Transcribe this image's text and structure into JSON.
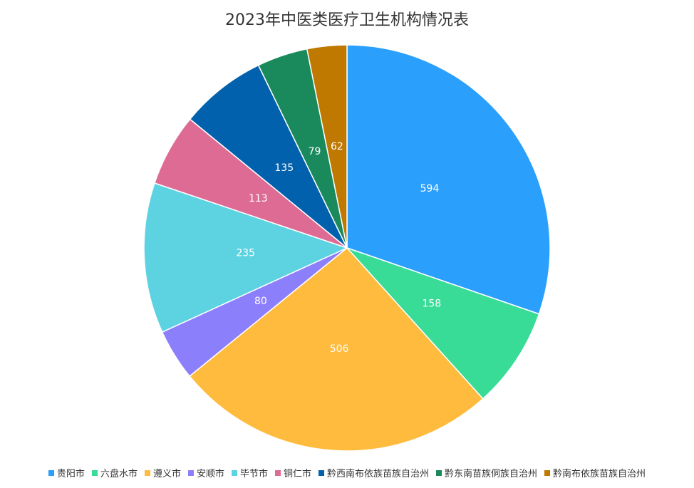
{
  "chart_data": {
    "type": "pie",
    "title": "2023年中医类医疗卫生机构情况表",
    "categories": [
      "贵阳市",
      "六盘水市",
      "遵义市",
      "安顺市",
      "毕节市",
      "铜仁市",
      "黔西南布依族苗族自治州",
      "黔东南苗族侗族自治州",
      "黔南布依族苗族自治州"
    ],
    "values": [
      594,
      158,
      506,
      80,
      235,
      113,
      135,
      79,
      62
    ],
    "colors": [
      "#2b9ffc",
      "#38dc97",
      "#ffbb3d",
      "#8c7ffc",
      "#5dd3e2",
      "#de6b94",
      "#0161ad",
      "#1a8a5c",
      "#bf7800"
    ],
    "legend_position": "bottom"
  }
}
